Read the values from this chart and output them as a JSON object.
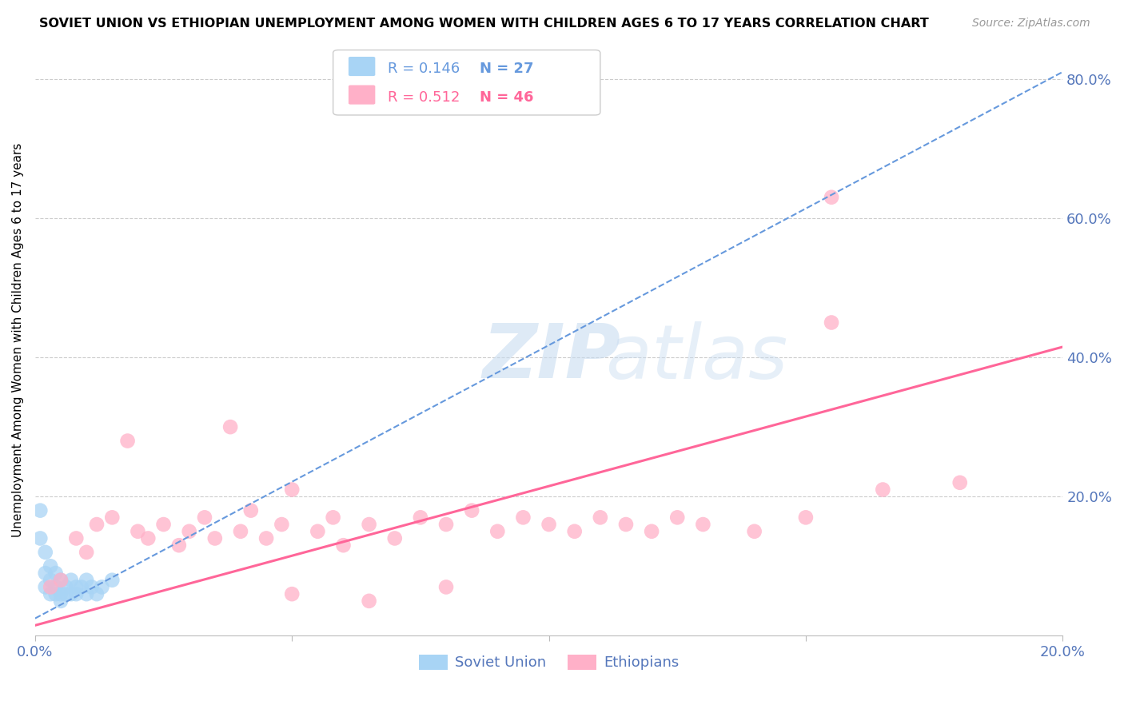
{
  "title": "SOVIET UNION VS ETHIOPIAN UNEMPLOYMENT AMONG WOMEN WITH CHILDREN AGES 6 TO 17 YEARS CORRELATION CHART",
  "source": "Source: ZipAtlas.com",
  "ylabel": "Unemployment Among Women with Children Ages 6 to 17 years",
  "xlabel_soviet": "Soviet Union",
  "xlabel_ethiopian": "Ethiopians",
  "legend_soviet_R": "R = 0.146",
  "legend_soviet_N": "N = 27",
  "legend_ethiopian_R": "R = 0.512",
  "legend_ethiopian_N": "N = 46",
  "xlim": [
    0.0,
    0.2
  ],
  "ylim": [
    0.0,
    0.85
  ],
  "xticks": [
    0.0,
    0.05,
    0.1,
    0.15,
    0.2
  ],
  "xtick_labels": [
    "0.0%",
    "",
    "",
    "",
    "20.0%"
  ],
  "yticks": [
    0.0,
    0.2,
    0.4,
    0.6,
    0.8
  ],
  "ytick_labels": [
    "",
    "20.0%",
    "40.0%",
    "60.0%",
    "80.0%"
  ],
  "color_soviet": "#A8D4F5",
  "color_soviet_line": "#6699DD",
  "color_ethiopian": "#FFB0C8",
  "color_ethiopian_line": "#FF6699",
  "background_color": "#FFFFFF",
  "watermark_zip": "ZIP",
  "watermark_atlas": "atlas",
  "soviet_scatter_x": [
    0.001,
    0.001,
    0.002,
    0.002,
    0.002,
    0.003,
    0.003,
    0.003,
    0.004,
    0.004,
    0.004,
    0.005,
    0.005,
    0.005,
    0.006,
    0.006,
    0.007,
    0.007,
    0.008,
    0.008,
    0.009,
    0.01,
    0.01,
    0.011,
    0.012,
    0.013,
    0.015
  ],
  "soviet_scatter_y": [
    0.18,
    0.14,
    0.12,
    0.09,
    0.07,
    0.08,
    0.1,
    0.06,
    0.09,
    0.07,
    0.06,
    0.08,
    0.06,
    0.05,
    0.07,
    0.06,
    0.08,
    0.06,
    0.07,
    0.06,
    0.07,
    0.06,
    0.08,
    0.07,
    0.06,
    0.07,
    0.08
  ],
  "ethiopian_scatter_x": [
    0.003,
    0.005,
    0.008,
    0.01,
    0.012,
    0.015,
    0.018,
    0.02,
    0.022,
    0.025,
    0.028,
    0.03,
    0.033,
    0.035,
    0.038,
    0.04,
    0.042,
    0.045,
    0.048,
    0.05,
    0.055,
    0.058,
    0.06,
    0.065,
    0.07,
    0.075,
    0.08,
    0.085,
    0.09,
    0.095,
    0.1,
    0.105,
    0.11,
    0.115,
    0.12,
    0.125,
    0.13,
    0.14,
    0.15,
    0.155,
    0.05,
    0.065,
    0.08,
    0.155,
    0.165,
    0.18
  ],
  "ethiopian_scatter_y": [
    0.07,
    0.08,
    0.14,
    0.12,
    0.16,
    0.17,
    0.28,
    0.15,
    0.14,
    0.16,
    0.13,
    0.15,
    0.17,
    0.14,
    0.3,
    0.15,
    0.18,
    0.14,
    0.16,
    0.21,
    0.15,
    0.17,
    0.13,
    0.16,
    0.14,
    0.17,
    0.16,
    0.18,
    0.15,
    0.17,
    0.16,
    0.15,
    0.17,
    0.16,
    0.15,
    0.17,
    0.16,
    0.15,
    0.17,
    0.45,
    0.06,
    0.05,
    0.07,
    0.63,
    0.21,
    0.22
  ],
  "soviet_trendline_x": [
    0.0,
    0.2
  ],
  "soviet_trendline_y": [
    0.025,
    0.81
  ],
  "ethiopian_trendline_x": [
    0.0,
    0.2
  ],
  "ethiopian_trendline_y": [
    0.015,
    0.415
  ]
}
